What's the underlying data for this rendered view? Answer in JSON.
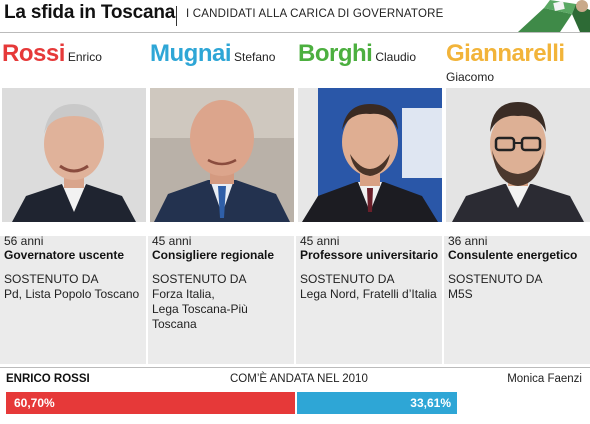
{
  "header": {
    "title": "La sfida in Toscana",
    "subtitle": "I CANDIDATI ALLA CARICA DI GOVERNATORE"
  },
  "candidates": [
    {
      "surname": "Rossi",
      "firstname": "Enrico",
      "color": "#e63939",
      "age": "56 anni",
      "role": "Governatore uscente",
      "support_label": "SOSTENUTO DA",
      "support_lines": [
        "Pd, Lista Popolo Toscano"
      ]
    },
    {
      "surname": "Mugnai",
      "firstname": "Stefano",
      "color": "#2ea6d6",
      "age": "45 anni",
      "role": "Consigliere regionale",
      "support_label": "SOSTENUTO DA",
      "support_lines": [
        "Forza Italia,",
        "Lega Toscana-Più Toscana"
      ]
    },
    {
      "surname": "Borghi",
      "firstname": "Claudio",
      "color": "#4caf3f",
      "age": "45 anni",
      "role": "Professore universitario",
      "support_label": "SOSTENUTO DA",
      "support_lines": [
        "Lega Nord, Fratelli d’Italia"
      ]
    },
    {
      "surname": "Giannarelli",
      "firstname": "Giacomo",
      "color": "#f2b43a",
      "age": "36 anni",
      "role": "Consulente energetico",
      "support_label": "SOSTENUTO DA",
      "support_lines": [
        "M5S"
      ]
    }
  ],
  "result_2010": {
    "winner_name": "ENRICO ROSSI",
    "label": "COM’È ANDATA NEL 2010",
    "loser_name": "Monica Faenzi",
    "winner_share": 60.7,
    "winner_share_label": "60,70%",
    "loser_share": 33.61,
    "loser_share_label": "33,61%",
    "winner_color": "#e63939",
    "loser_color": "#2ea6d6"
  }
}
